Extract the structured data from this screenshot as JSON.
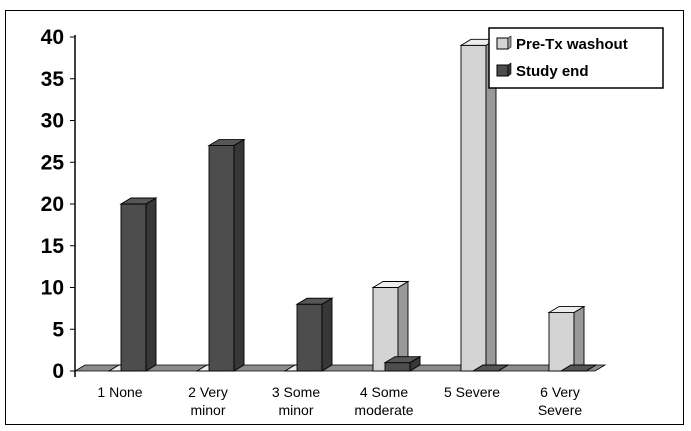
{
  "chart_data": {
    "type": "bar",
    "categories": [
      [
        "1 None"
      ],
      [
        "2 Very",
        "minor"
      ],
      [
        "3 Some",
        "minor"
      ],
      [
        "4 Some",
        "moderate"
      ],
      [
        "5 Severe"
      ],
      [
        "6 Very",
        "Severe"
      ]
    ],
    "series": [
      {
        "name": "Pre-Tx washout",
        "values": [
          0,
          0,
          0,
          10,
          39,
          7
        ],
        "color": "#d4d4d4"
      },
      {
        "name": "Study end",
        "values": [
          20,
          27,
          8,
          1,
          0,
          0
        ],
        "color": "#4d4d4d"
      }
    ],
    "yticks": [
      "0",
      "5",
      "10",
      "15",
      "20",
      "25",
      "30",
      "35",
      "40"
    ],
    "ylim": [
      0,
      40
    ],
    "grid": false,
    "legend_position": "top-right",
    "style": "3d"
  }
}
